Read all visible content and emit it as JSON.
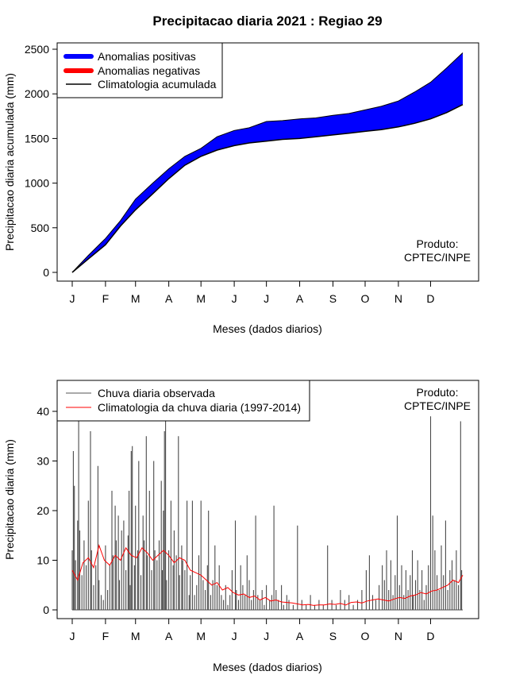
{
  "title": "Precipitacao diaria 2021 : Regiao 29",
  "chart_data": [
    {
      "type": "area",
      "xlabel": "Meses (dados diarios)",
      "ylabel": "Precipitacao diaria acumulada (mm)",
      "ylim": [
        0,
        2500
      ],
      "yticks": [
        "0",
        "500",
        "1000",
        "1500",
        "2000",
        "2500"
      ],
      "months": [
        "J",
        "F",
        "M",
        "A",
        "M",
        "J",
        "J",
        "A",
        "S",
        "O",
        "N",
        "D"
      ],
      "legend": {
        "position": "top-left",
        "entries": [
          "Anomalias positivas",
          "Anomalias negativas",
          "Climatologia acumulada"
        ],
        "colors": [
          "#0000ff",
          "#ff0000",
          "#000000"
        ]
      },
      "credit": [
        "Produto:",
        "CPTEC/INPE"
      ],
      "x_day": [
        0,
        15,
        31,
        45,
        59,
        75,
        90,
        105,
        120,
        135,
        151,
        165,
        181,
        196,
        212,
        227,
        243,
        258,
        273,
        288,
        304,
        319,
        334,
        349,
        364
      ],
      "observed": [
        0,
        190,
        380,
        580,
        820,
        1000,
        1160,
        1300,
        1390,
        1520,
        1590,
        1620,
        1690,
        1700,
        1720,
        1730,
        1760,
        1780,
        1820,
        1860,
        1920,
        2020,
        2130,
        2290,
        2460
      ],
      "climatology": [
        0,
        150,
        310,
        520,
        700,
        880,
        1050,
        1200,
        1300,
        1370,
        1420,
        1450,
        1470,
        1490,
        1500,
        1520,
        1540,
        1560,
        1580,
        1600,
        1630,
        1670,
        1720,
        1790,
        1880
      ]
    },
    {
      "type": "bar",
      "xlabel": "Meses (dados diarios)",
      "ylabel": "Precipitacao diaria (mm)",
      "ylim": [
        0,
        45
      ],
      "yticks": [
        "0",
        "10",
        "20",
        "30",
        "40"
      ],
      "months": [
        "J",
        "F",
        "M",
        "A",
        "M",
        "J",
        "J",
        "A",
        "S",
        "O",
        "N",
        "D"
      ],
      "legend": {
        "position": "top-left",
        "entries": [
          "Chuva diaria observada",
          "Climatologia da chuva diaria (1997-2014)"
        ],
        "colors": [
          "#555555",
          "#ff0000"
        ]
      },
      "credit": [
        "Produto:",
        "CPTEC/INPE"
      ],
      "bars": [
        {
          "day": 0,
          "value": 12.0
        },
        {
          "day": 1,
          "value": 32.0
        },
        {
          "day": 2,
          "value": 25.0
        },
        {
          "day": 3,
          "value": 10.0
        },
        {
          "day": 5,
          "value": 18.0
        },
        {
          "day": 6,
          "value": 38.0
        },
        {
          "day": 7,
          "value": 16.0
        },
        {
          "day": 9,
          "value": 7.0
        },
        {
          "day": 11,
          "value": 14.0
        },
        {
          "day": 13,
          "value": 9.0
        },
        {
          "day": 15,
          "value": 22.0
        },
        {
          "day": 17,
          "value": 36.0
        },
        {
          "day": 18,
          "value": 12.0
        },
        {
          "day": 20,
          "value": 5.0
        },
        {
          "day": 22,
          "value": 9.0
        },
        {
          "day": 24,
          "value": 29.0
        },
        {
          "day": 25,
          "value": 6.0
        },
        {
          "day": 27,
          "value": 3.0
        },
        {
          "day": 29,
          "value": 2.0
        },
        {
          "day": 31,
          "value": 13.0
        },
        {
          "day": 33,
          "value": 4.0
        },
        {
          "day": 35,
          "value": 9.0
        },
        {
          "day": 37,
          "value": 24.0
        },
        {
          "day": 38,
          "value": 11.0
        },
        {
          "day": 40,
          "value": 21.0
        },
        {
          "day": 41,
          "value": 14.0
        },
        {
          "day": 43,
          "value": 19.0
        },
        {
          "day": 44,
          "value": 6.0
        },
        {
          "day": 46,
          "value": 16.0
        },
        {
          "day": 48,
          "value": 18.0
        },
        {
          "day": 50,
          "value": 8.0
        },
        {
          "day": 52,
          "value": 15.0
        },
        {
          "day": 53,
          "value": 24.0
        },
        {
          "day": 54,
          "value": 5.0
        },
        {
          "day": 55,
          "value": 32.0
        },
        {
          "day": 56,
          "value": 33.0
        },
        {
          "day": 58,
          "value": 9.0
        },
        {
          "day": 59,
          "value": 21.0
        },
        {
          "day": 61,
          "value": 12.0
        },
        {
          "day": 62,
          "value": 30.0
        },
        {
          "day": 64,
          "value": 7.0
        },
        {
          "day": 66,
          "value": 19.0
        },
        {
          "day": 67,
          "value": 14.0
        },
        {
          "day": 69,
          "value": 35.0
        },
        {
          "day": 70,
          "value": 11.0
        },
        {
          "day": 72,
          "value": 24.0
        },
        {
          "day": 74,
          "value": 8.0
        },
        {
          "day": 76,
          "value": 30.0
        },
        {
          "day": 77,
          "value": 12.0
        },
        {
          "day": 79,
          "value": 10.0
        },
        {
          "day": 81,
          "value": 14.0
        },
        {
          "day": 83,
          "value": 26.0
        },
        {
          "day": 84,
          "value": 8.0
        },
        {
          "day": 85,
          "value": 20.0
        },
        {
          "day": 86,
          "value": 36.0
        },
        {
          "day": 87,
          "value": 38.0
        },
        {
          "day": 88,
          "value": 6.0
        },
        {
          "day": 90,
          "value": 12.0
        },
        {
          "day": 92,
          "value": 22.0
        },
        {
          "day": 94,
          "value": 9.0
        },
        {
          "day": 95,
          "value": 16.0
        },
        {
          "day": 97,
          "value": 11.0
        },
        {
          "day": 99,
          "value": 35.0
        },
        {
          "day": 100,
          "value": 7.0
        },
        {
          "day": 102,
          "value": 13.0
        },
        {
          "day": 103,
          "value": 10.0
        },
        {
          "day": 105,
          "value": 8.0
        },
        {
          "day": 107,
          "value": 22.0
        },
        {
          "day": 109,
          "value": 3.0
        },
        {
          "day": 110,
          "value": 7.0
        },
        {
          "day": 112,
          "value": 22.0
        },
        {
          "day": 114,
          "value": 3.0
        },
        {
          "day": 116,
          "value": 5.0
        },
        {
          "day": 118,
          "value": 11.0
        },
        {
          "day": 120,
          "value": 22.0
        },
        {
          "day": 122,
          "value": 6.0
        },
        {
          "day": 124,
          "value": 4.0
        },
        {
          "day": 126,
          "value": 9.0
        },
        {
          "day": 127,
          "value": 20.0
        },
        {
          "day": 129,
          "value": 3.0
        },
        {
          "day": 131,
          "value": 6.0
        },
        {
          "day": 133,
          "value": 13.0
        },
        {
          "day": 135,
          "value": 5.0
        },
        {
          "day": 137,
          "value": 9.0
        },
        {
          "day": 139,
          "value": 3.0
        },
        {
          "day": 141,
          "value": 2.0
        },
        {
          "day": 143,
          "value": 5.0
        },
        {
          "day": 145,
          "value": 1.0
        },
        {
          "day": 147,
          "value": 3.0
        },
        {
          "day": 149,
          "value": 8.0
        },
        {
          "day": 152,
          "value": 18.0
        },
        {
          "day": 153,
          "value": 4.0
        },
        {
          "day": 155,
          "value": 2.0
        },
        {
          "day": 157,
          "value": 9.0
        },
        {
          "day": 159,
          "value": 5.0
        },
        {
          "day": 161,
          "value": 3.0
        },
        {
          "day": 163,
          "value": 11.0
        },
        {
          "day": 165,
          "value": 6.0
        },
        {
          "day": 167,
          "value": 2.0
        },
        {
          "day": 169,
          "value": 4.0
        },
        {
          "day": 171,
          "value": 19.0
        },
        {
          "day": 173,
          "value": 3.0
        },
        {
          "day": 175,
          "value": 2.0
        },
        {
          "day": 177,
          "value": 4.0
        },
        {
          "day": 179,
          "value": 1.0
        },
        {
          "day": 181,
          "value": 5.0
        },
        {
          "day": 184,
          "value": 2.0
        },
        {
          "day": 186,
          "value": 3.0
        },
        {
          "day": 188,
          "value": 21.0
        },
        {
          "day": 190,
          "value": 4.0
        },
        {
          "day": 192,
          "value": 2.0
        },
        {
          "day": 195,
          "value": 5.0
        },
        {
          "day": 197,
          "value": 1.0
        },
        {
          "day": 200,
          "value": 3.0
        },
        {
          "day": 202,
          "value": 2.0
        },
        {
          "day": 206,
          "value": 1.0
        },
        {
          "day": 210,
          "value": 17.0
        },
        {
          "day": 214,
          "value": 2.0
        },
        {
          "day": 218,
          "value": 1.0
        },
        {
          "day": 222,
          "value": 3.0
        },
        {
          "day": 226,
          "value": 1.0
        },
        {
          "day": 230,
          "value": 2.0
        },
        {
          "day": 234,
          "value": 1.0
        },
        {
          "day": 238,
          "value": 13.0
        },
        {
          "day": 242,
          "value": 2.0
        },
        {
          "day": 246,
          "value": 1.0
        },
        {
          "day": 250,
          "value": 4.0
        },
        {
          "day": 254,
          "value": 2.0
        },
        {
          "day": 258,
          "value": 3.0
        },
        {
          "day": 262,
          "value": 1.0
        },
        {
          "day": 266,
          "value": 2.0
        },
        {
          "day": 270,
          "value": 4.0
        },
        {
          "day": 274,
          "value": 8.0
        },
        {
          "day": 277,
          "value": 11.0
        },
        {
          "day": 280,
          "value": 3.0
        },
        {
          "day": 283,
          "value": 2.0
        },
        {
          "day": 286,
          "value": 5.0
        },
        {
          "day": 289,
          "value": 9.0
        },
        {
          "day": 291,
          "value": 6.0
        },
        {
          "day": 293,
          "value": 12.0
        },
        {
          "day": 295,
          "value": 4.0
        },
        {
          "day": 297,
          "value": 10.0
        },
        {
          "day": 299,
          "value": 3.0
        },
        {
          "day": 301,
          "value": 7.0
        },
        {
          "day": 303,
          "value": 19.0
        },
        {
          "day": 305,
          "value": 5.0
        },
        {
          "day": 307,
          "value": 9.0
        },
        {
          "day": 309,
          "value": 3.0
        },
        {
          "day": 311,
          "value": 8.0
        },
        {
          "day": 313,
          "value": 4.0
        },
        {
          "day": 315,
          "value": 7.0
        },
        {
          "day": 317,
          "value": 12.0
        },
        {
          "day": 318,
          "value": 3.0
        },
        {
          "day": 320,
          "value": 6.0
        },
        {
          "day": 322,
          "value": 10.0
        },
        {
          "day": 324,
          "value": 4.0
        },
        {
          "day": 326,
          "value": 8.0
        },
        {
          "day": 328,
          "value": 2.0
        },
        {
          "day": 330,
          "value": 5.0
        },
        {
          "day": 332,
          "value": 9.0
        },
        {
          "day": 334,
          "value": 39.0
        },
        {
          "day": 336,
          "value": 19.0
        },
        {
          "day": 338,
          "value": 12.0
        },
        {
          "day": 340,
          "value": 7.0
        },
        {
          "day": 342,
          "value": 4.0
        },
        {
          "day": 344,
          "value": 13.0
        },
        {
          "day": 346,
          "value": 7.0
        },
        {
          "day": 348,
          "value": 18.0
        },
        {
          "day": 350,
          "value": 4.0
        },
        {
          "day": 352,
          "value": 8.0
        },
        {
          "day": 354,
          "value": 10.0
        },
        {
          "day": 356,
          "value": 6.0
        },
        {
          "day": 358,
          "value": 12.0
        },
        {
          "day": 360,
          "value": 5.0
        },
        {
          "day": 362,
          "value": 38.0
        },
        {
          "day": 363,
          "value": 8.0
        }
      ],
      "climatology_day": [
        0,
        5,
        10,
        15,
        20,
        25,
        30,
        35,
        40,
        45,
        50,
        55,
        60,
        65,
        70,
        75,
        80,
        85,
        90,
        95,
        100,
        105,
        110,
        115,
        120,
        125,
        130,
        135,
        140,
        145,
        150,
        155,
        160,
        165,
        170,
        175,
        180,
        185,
        190,
        195,
        200,
        205,
        210,
        215,
        220,
        225,
        230,
        235,
        240,
        245,
        250,
        255,
        260,
        265,
        270,
        275,
        280,
        285,
        290,
        295,
        300,
        305,
        310,
        315,
        320,
        325,
        330,
        335,
        340,
        345,
        350,
        355,
        360,
        364
      ],
      "climatology": [
        8.0,
        6.0,
        9.5,
        10.5,
        8.5,
        13.0,
        10.0,
        9.0,
        11.0,
        10.0,
        12.5,
        11.0,
        10.5,
        12.5,
        11.5,
        10.0,
        11.0,
        12.0,
        11.0,
        9.5,
        10.5,
        10.0,
        8.0,
        7.5,
        7.0,
        6.0,
        5.0,
        5.5,
        4.0,
        4.5,
        3.5,
        3.0,
        3.2,
        2.5,
        2.8,
        2.0,
        2.5,
        1.8,
        2.0,
        1.6,
        1.5,
        1.4,
        1.2,
        1.0,
        1.1,
        0.9,
        1.0,
        1.0,
        1.2,
        1.1,
        1.3,
        1.0,
        1.5,
        1.6,
        1.4,
        1.8,
        2.0,
        2.2,
        2.0,
        1.8,
        2.2,
        2.5,
        2.3,
        2.8,
        3.0,
        3.5,
        3.2,
        3.8,
        4.0,
        4.5,
        5.0,
        6.0,
        5.5,
        7.0
      ]
    }
  ]
}
